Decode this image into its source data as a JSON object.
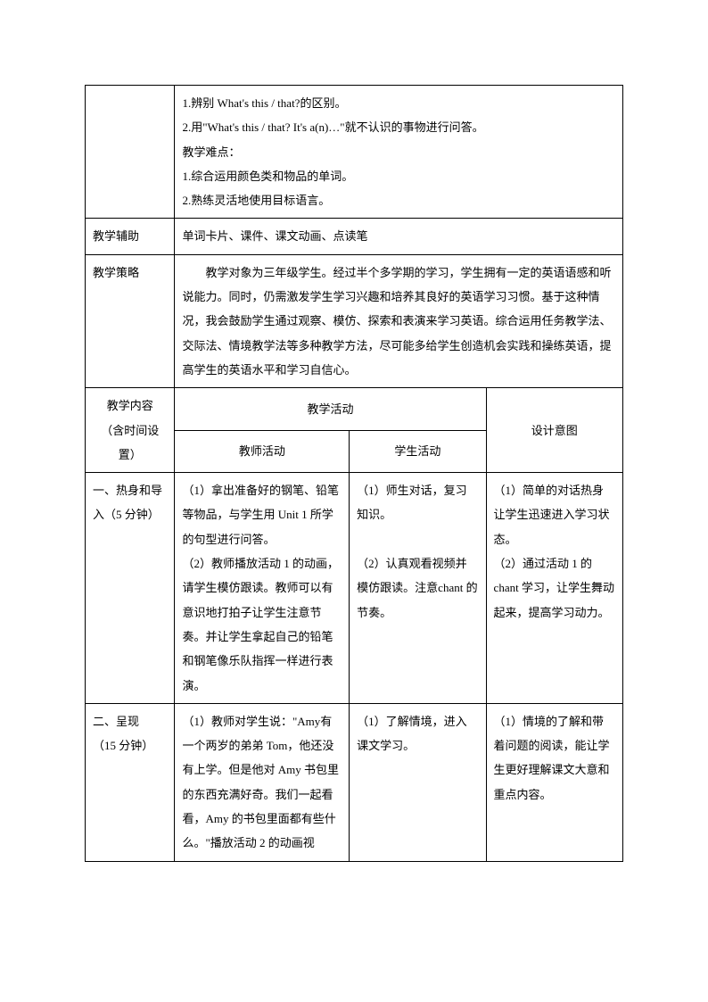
{
  "row1": {
    "content": "1.辨别 What's this / that?的区别。\n2.用\"What's this / that? It's a(n)…\"就不认识的事物进行问答。\n教学难点：\n1.综合运用颜色类和物品的单词。\n2.熟练灵活地使用目标语言。"
  },
  "row2": {
    "label": "教学辅助",
    "content": "单词卡片、课件、课文动画、点读笔"
  },
  "row3": {
    "label": "教学策略",
    "content": "　　教学对象为三年级学生。经过半个多学期的学习，学生拥有一定的英语语感和听说能力。同时，仍需激发学生学习兴趣和培养其良好的英语学习习惯。基于这种情况，我会鼓励学生通过观察、模仿、探索和表演来学习英语。综合运用任务教学法、交际法、情境教学法等多种教学方法，尽可能多给学生创造机会实践和操练英语，提高学生的英语水平和学习自信心。"
  },
  "header": {
    "col1": "教学内容\n（含时间设置）",
    "col2_merged": "教学活动",
    "col2": "教师活动",
    "col3": "学生活动",
    "col4": "设计意图"
  },
  "section1": {
    "label": "一、热身和导入（5 分钟）",
    "teacher": "（1）拿出准备好的钢笔、铅笔等物品，与学生用 Unit 1 所学的句型进行问答。\n（2）教师播放活动 1 的动画，请学生模仿跟读。教师可以有意识地打拍子让学生注意节奏。并让学生拿起自己的铅笔和钢笔像乐队指挥一样进行表演。",
    "student": "（1）师生对话，复习知识。\n\n（2）认真观看视频并模仿跟读。注意chant 的节奏。",
    "purpose": "（1）简单的对话热身让学生迅速进入学习状态。\n（2）通过活动 1 的chant 学习，让学生舞动起来，提高学习动力。"
  },
  "section2": {
    "label": "二、呈现\n（15 分钟）",
    "teacher": "（1）教师对学生说：\"Amy有一个两岁的弟弟 Tom，他还没有上学。但是他对 Amy 书包里的东西充满好奇。我们一起看看，Amy 的书包里面都有些什么。\"播放活动 2 的动画视",
    "student": "（1）了解情境，进入课文学习。",
    "purpose": "（1）情境的了解和带着问题的阅读，能让学生更好理解课文大意和重点内容。"
  }
}
